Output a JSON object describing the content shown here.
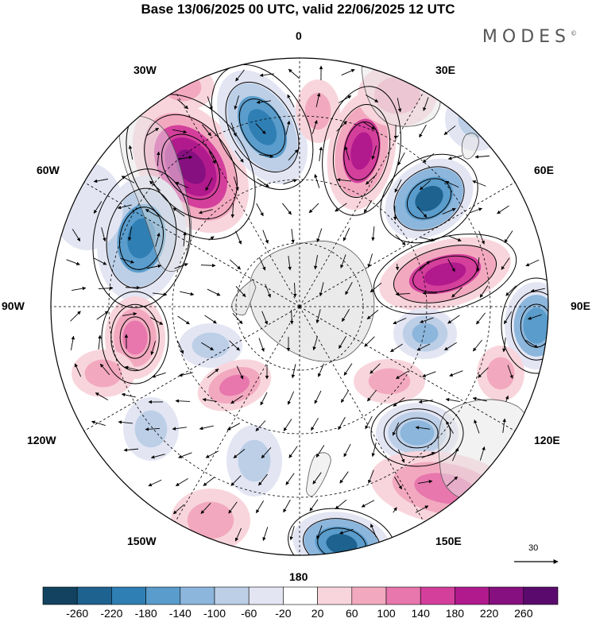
{
  "title": "Base 13/06/2025 00 UTC, valid 22/06/2025 12 UTC",
  "brand": {
    "name": "MODES",
    "mark": "©"
  },
  "longitude_labels": [
    {
      "name": "lon-0",
      "text": "0"
    },
    {
      "name": "lon-30e",
      "text": "30E"
    },
    {
      "name": "lon-60e",
      "text": "60E"
    },
    {
      "name": "lon-90e",
      "text": "90E"
    },
    {
      "name": "lon-120e",
      "text": "120E"
    },
    {
      "name": "lon-150e",
      "text": "150E"
    },
    {
      "name": "lon-180",
      "text": "180"
    },
    {
      "name": "lon-150w",
      "text": "150W"
    },
    {
      "name": "lon-120w",
      "text": "120W"
    },
    {
      "name": "lon-90w",
      "text": "90W"
    },
    {
      "name": "lon-60w",
      "text": "60W"
    },
    {
      "name": "lon-30w",
      "text": "30W"
    }
  ],
  "reference_vector": {
    "value": "30"
  },
  "colorbar": {
    "labels": [
      "-260",
      "-220",
      "-180",
      "-140",
      "-100",
      "-60",
      "-20",
      "20",
      "60",
      "100",
      "140",
      "180",
      "220",
      "260"
    ],
    "colors": [
      "#12425f",
      "#1e628f",
      "#2f7fb4",
      "#5a9ccb",
      "#8cb6dc",
      "#bccfe7",
      "#e3e5f3",
      "#ffffff",
      "#f8d5dc",
      "#f2a9c0",
      "#e777ad",
      "#d43f9c",
      "#b01a8d",
      "#861080",
      "#5a0a6c"
    ]
  },
  "colors": {
    "land": "#e6e6e6",
    "coast": "#555555",
    "grid": "#000000"
  }
}
